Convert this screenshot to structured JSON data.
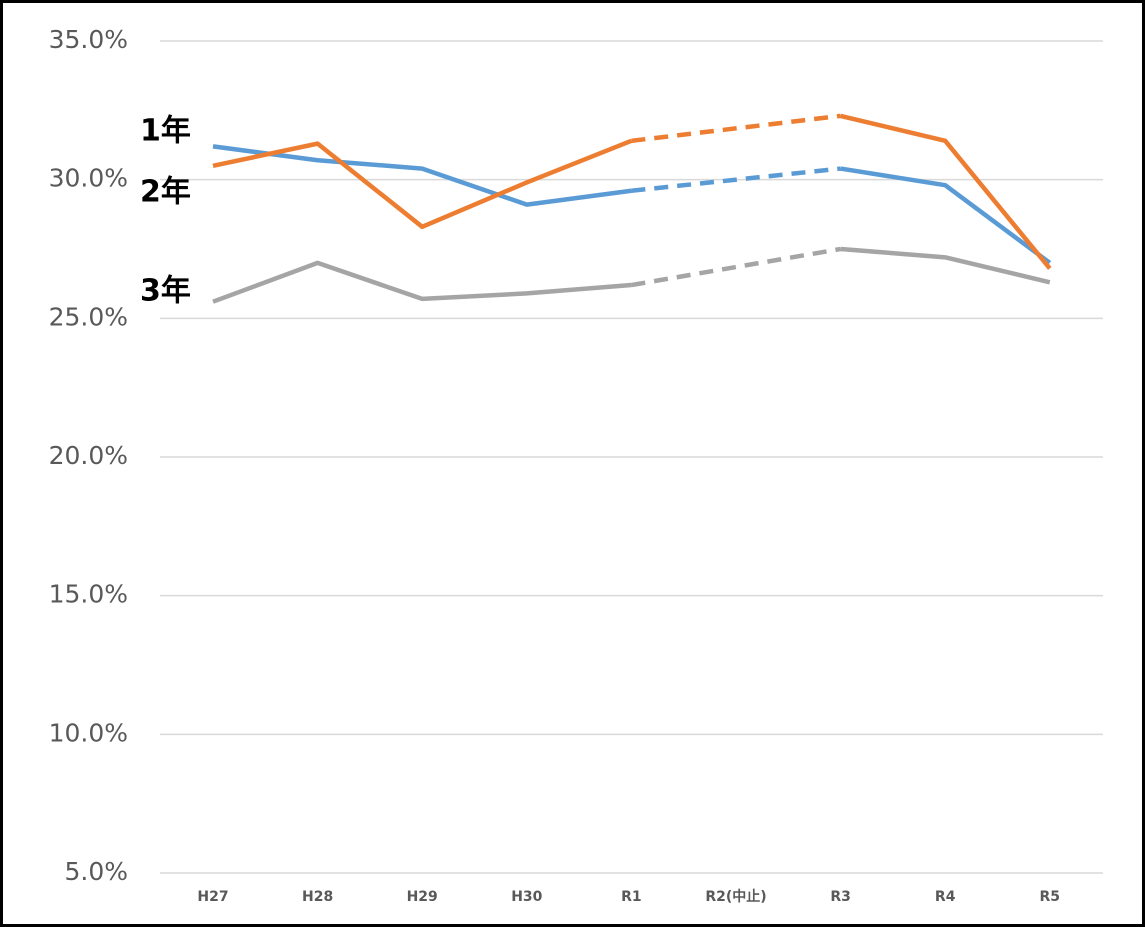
{
  "chart_data": {
    "type": "line",
    "categories": [
      "H27",
      "H28",
      "H29",
      "H30",
      "R1",
      "R2(中止)",
      "R3",
      "R4",
      "R5"
    ],
    "series": [
      {
        "name": "1年",
        "color": "#5b9bd5",
        "values": [
          31.2,
          30.7,
          30.4,
          29.1,
          29.6,
          null,
          30.4,
          29.8,
          27.0
        ]
      },
      {
        "name": "2年",
        "color": "#ed7d31",
        "values": [
          30.5,
          31.3,
          28.3,
          29.9,
          31.4,
          null,
          32.3,
          31.4,
          26.8
        ]
      },
      {
        "name": "3年",
        "color": "#a5a5a5",
        "values": [
          25.6,
          27.0,
          25.7,
          25.9,
          26.2,
          null,
          27.5,
          27.2,
          26.3
        ]
      }
    ],
    "ylim": [
      5,
      35
    ],
    "yticks": [
      {
        "value": 5,
        "label": "5.0%"
      },
      {
        "value": 10,
        "label": "10.0%"
      },
      {
        "value": 15,
        "label": "15.0%"
      },
      {
        "value": 20,
        "label": "20.0%"
      },
      {
        "value": 25,
        "label": "25.0%"
      },
      {
        "value": 30,
        "label": "30.0%"
      },
      {
        "value": 35,
        "label": "35.0%"
      }
    ],
    "grid": true
  }
}
